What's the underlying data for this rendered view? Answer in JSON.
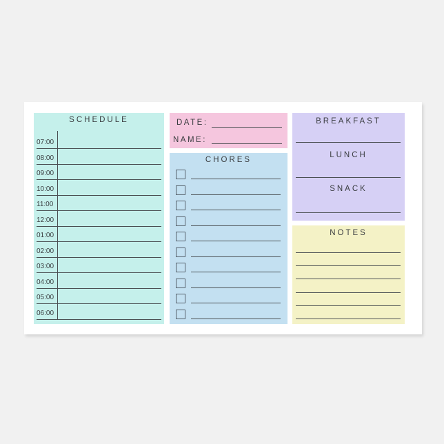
{
  "colors": {
    "schedule": "#c5f0eb",
    "date": "#f5c6de",
    "chores": "#c3e0f1",
    "meals": "#d6d0f5",
    "notes": "#f4f2c6"
  },
  "schedule": {
    "title": "SCHEDULE",
    "times": [
      "07:00",
      "08:00",
      "09:00",
      "10:00",
      "11:00",
      "12:00",
      "01:00",
      "02:00",
      "03:00",
      "04:00",
      "05:00",
      "06:00"
    ]
  },
  "header": {
    "date_label": "DATE:",
    "name_label": "NAME:"
  },
  "chores": {
    "title": "CHORES",
    "count": 10
  },
  "meals": {
    "breakfast": "BREAKFAST",
    "lunch": "LUNCH",
    "snack": "SNACK"
  },
  "notes": {
    "title": "NOTES",
    "lines": 6
  }
}
